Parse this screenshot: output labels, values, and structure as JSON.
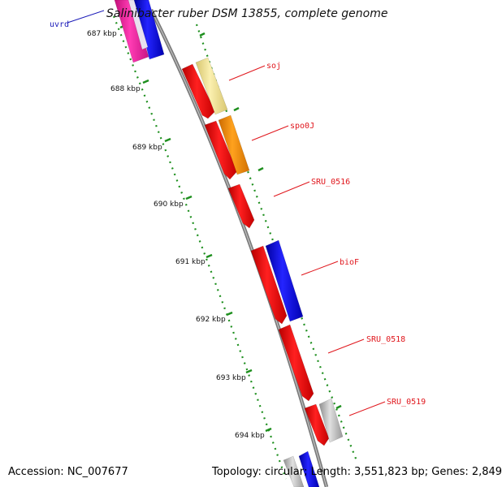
{
  "title": "Salinibacter ruber DSM 13855, complete genome",
  "footer": {
    "accession": "Accession: NC_007677",
    "topology": "Topology: circular; Length: 3,551,823 bp; Genes: 2,849"
  },
  "ticks": [
    "687 kbp",
    "688 kbp",
    "689 kbp",
    "690 kbp",
    "691 kbp",
    "692 kbp",
    "693 kbp",
    "694 kbp"
  ],
  "genes": [
    {
      "label": "uvrd",
      "color": "#1a1ab8"
    },
    {
      "label": "soj",
      "color": "#e0161c"
    },
    {
      "label": "spo0J",
      "color": "#e0161c"
    },
    {
      "label": "SRU_0516",
      "color": "#e0161c"
    },
    {
      "label": "bioF",
      "color": "#e0161c"
    },
    {
      "label": "SRU_0518",
      "color": "#e0161c"
    },
    {
      "label": "SRU_0519",
      "color": "#e0161c"
    }
  ],
  "colors": {
    "red": "#ff1111",
    "blue": "#1111ee",
    "magenta": "#ff22aa",
    "pale_yellow": "#f4e79a",
    "orange": "#ff8c00",
    "gray": "#bbbbbb",
    "backbone": "#888888",
    "tick_green": "#1e8f1e"
  }
}
